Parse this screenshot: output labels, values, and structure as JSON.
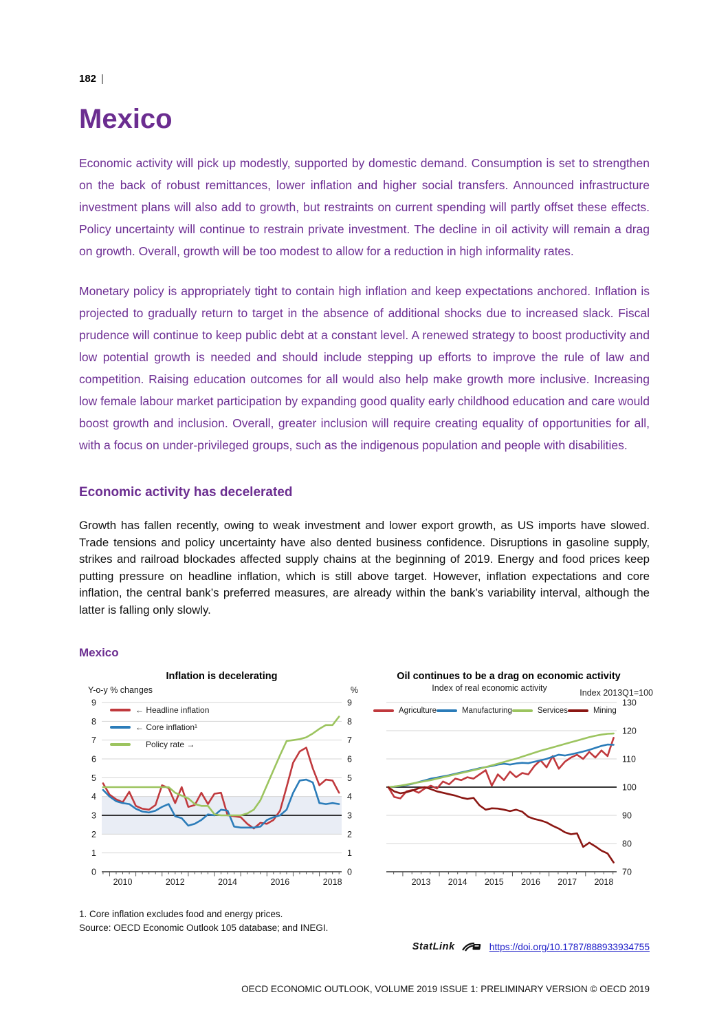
{
  "page": {
    "page_number": "182",
    "page_number_separator": "|",
    "title": "Mexico",
    "lead_paragraphs": [
      "Economic activity will pick up modestly, supported by domestic demand. Consumption is set to strengthen on the back of robust remittances, lower inflation and higher social transfers. Announced infrastructure investment plans will also add to growth, but restraints on current spending will partly offset these effects. Policy uncertainty will continue to restrain private investment. The decline in oil activity will remain a drag on growth. Overall, growth will be too modest to allow for a reduction in high informality rates.",
      "Monetary policy is appropriately tight to contain high inflation and keep expectations anchored. Inflation is projected to gradually return to target in the absence of additional shocks due to increased slack. Fiscal prudence will continue to keep public debt at a constant level. A renewed strategy to boost productivity and low potential growth is needed and should include stepping up efforts to improve the rule of law and competition. Raising education outcomes for all would also help make growth more inclusive. Increasing low female labour market participation by expanding good quality early childhood education and care would boost growth and inclusion. Overall, greater inclusion will require creating equality of opportunities for all, with a focus on under-privileged groups, such as the indigenous population and people with disabilities."
    ],
    "section_heading": "Economic activity has decelerated",
    "body_paragraph": "Growth has fallen recently, owing to weak investment and lower export growth, as US imports have slowed. Trade tensions and policy uncertainty have also dented business confidence. Disruptions in gasoline supply, strikes and railroad blockades affected supply chains at the beginning of 2019. Energy and food prices keep putting pressure on headline inflation, which is still above target. However, inflation expectations and core inflation, the central bank’s preferred measures, are already within the bank’s variability interval, although the latter is falling only slowly.",
    "figure_label": "Mexico",
    "footnotes": [
      "1. Core inflation excludes food and energy prices.",
      "Source: OECD Economic Outlook 105 database; and INEGI."
    ],
    "statlink": {
      "label": "StatLink",
      "icon": "statlink-icon",
      "url": "https://doi.org/10.1787/888933934755"
    },
    "footer": "OECD ECONOMIC OUTLOOK, VOLUME 2019 ISSUE 1: PRELIMINARY VERSION © OECD 2019"
  },
  "colors": {
    "heading_purple": "#6b2d90",
    "lead_purple": "#6d2e93",
    "link_blue": "#1d1dc8",
    "grid_gray": "#d4d4d4",
    "band_fill": "#e9edf5",
    "axis_dark": "#333333"
  },
  "chart_data": [
    {
      "type": "line",
      "title": "Inflation is decelerating",
      "left_axis_label": "Y-o-y % changes",
      "right_axis_label": "%",
      "ylim": [
        0,
        9
      ],
      "yticks": [
        0,
        1,
        2,
        3,
        4,
        5,
        6,
        7,
        8,
        9
      ],
      "y_labels_left": true,
      "y_labels_right": true,
      "xlim": [
        2009.7,
        2018.85
      ],
      "xtick_labels": [
        2010,
        2012,
        2014,
        2016,
        2018
      ],
      "minor_tick_step": 0.25,
      "grid": true,
      "band": {
        "y_from": 2,
        "y_to": 4
      },
      "reference_line_y": 3,
      "x_start": 2009.75,
      "x_step": 0.25,
      "legend_position": "top-left-vertical",
      "series": [
        {
          "name": "Headline inflation",
          "legend_label": "← Headline inflation",
          "color": "#c0393d",
          "values": [
            4.7,
            4.1,
            3.85,
            3.7,
            4.25,
            3.5,
            3.35,
            3.3,
            3.55,
            4.6,
            4.45,
            3.65,
            4.5,
            3.45,
            3.55,
            4.2,
            3.6,
            4.15,
            4.2,
            3.0,
            2.95,
            2.9,
            2.55,
            2.3,
            2.6,
            2.55,
            2.75,
            3.25,
            4.5,
            5.8,
            6.4,
            6.6,
            5.5,
            4.6,
            4.9,
            4.85,
            4.2
          ]
        },
        {
          "name": "Core inflation",
          "legend_label": "← Core inflation¹",
          "color": "#2b7cb9",
          "values": [
            4.35,
            4.0,
            3.75,
            3.65,
            3.6,
            3.35,
            3.2,
            3.15,
            3.25,
            3.45,
            3.6,
            2.95,
            2.85,
            2.45,
            2.55,
            2.75,
            3.05,
            3.0,
            3.3,
            3.25,
            2.4,
            2.35,
            2.35,
            2.35,
            2.4,
            2.75,
            2.9,
            3.0,
            3.3,
            4.2,
            4.85,
            4.9,
            4.75,
            3.65,
            3.6,
            3.65,
            3.6
          ]
        },
        {
          "name": "Policy rate",
          "legend_label": "Policy rate →",
          "color": "#9cc45f",
          "values": [
            4.5,
            4.5,
            4.5,
            4.5,
            4.5,
            4.5,
            4.5,
            4.5,
            4.5,
            4.5,
            4.5,
            4.2,
            4.05,
            3.9,
            3.6,
            3.5,
            3.5,
            3.05,
            3.0,
            3.0,
            3.0,
            3.0,
            3.1,
            3.3,
            3.8,
            4.6,
            5.4,
            6.2,
            6.95,
            7.0,
            7.05,
            7.15,
            7.35,
            7.6,
            7.8,
            7.8,
            8.25
          ]
        }
      ]
    },
    {
      "type": "line",
      "title": "Oil continues to be a drag on economic activity",
      "subtitle": "Index of real economic activity",
      "right_axis_label": "Index 2013Q1=100",
      "ylim": [
        70,
        130
      ],
      "yticks": [
        70,
        80,
        90,
        100,
        110,
        120,
        130
      ],
      "y_labels_left": false,
      "y_labels_right": true,
      "xlim": [
        2012.55,
        2018.85
      ],
      "xtick_labels": [
        2013,
        2014,
        2015,
        2016,
        2017,
        2018
      ],
      "minor_tick_step": 0.25,
      "grid": true,
      "reference_line_y": 100,
      "x_start": 2012.6,
      "x_step": 0.1667,
      "legend_position": "top-horizontal",
      "series": [
        {
          "name": "Agriculture",
          "color": "#c0393d",
          "values": [
            100,
            96.5,
            96.0,
            98.5,
            99.0,
            98.0,
            99.5,
            100.5,
            99.5,
            102.0,
            101.0,
            103.0,
            102.5,
            103.5,
            103.0,
            104.5,
            106.0,
            100.5,
            104.5,
            102.5,
            105.5,
            103.5,
            105.0,
            104.5,
            107.5,
            109.5,
            107.0,
            111.0,
            106.5,
            109.0,
            110.5,
            111.5,
            110.0,
            112.5,
            110.5,
            113.0,
            111.0,
            117.5
          ]
        },
        {
          "name": "Manufacturing",
          "color": "#2b7cb9",
          "values": [
            100,
            100.2,
            100.4,
            100.7,
            101.2,
            101.8,
            102.4,
            103.0,
            103.4,
            103.8,
            104.2,
            104.7,
            105.2,
            105.7,
            106.2,
            106.7,
            107.1,
            107.5,
            108.0,
            108.3,
            108.0,
            108.4,
            108.6,
            108.5,
            109.0,
            109.5,
            110.0,
            110.8,
            111.5,
            111.2,
            111.6,
            112.1,
            112.6,
            113.2,
            113.9,
            114.6,
            115.1,
            115.0
          ]
        },
        {
          "name": "Services",
          "color": "#9cc45f",
          "values": [
            100,
            100.2,
            100.5,
            100.9,
            101.3,
            101.7,
            102.1,
            102.5,
            103.0,
            103.5,
            104.0,
            104.5,
            105.0,
            105.5,
            106.0,
            106.5,
            107.1,
            107.7,
            108.3,
            108.9,
            109.5,
            110.1,
            110.8,
            111.5,
            112.2,
            112.9,
            113.5,
            114.1,
            114.7,
            115.3,
            115.9,
            116.5,
            117.1,
            117.7,
            118.2,
            118.6,
            118.9,
            119.0
          ]
        },
        {
          "name": "Mining",
          "color": "#8b1713",
          "values": [
            100,
            98.5,
            97.8,
            98.2,
            98.8,
            99.6,
            100.0,
            99.3,
            98.5,
            98.0,
            97.5,
            97.0,
            96.3,
            95.8,
            96.2,
            93.5,
            92.0,
            92.5,
            92.4,
            92.0,
            91.5,
            92.0,
            91.3,
            89.5,
            88.7,
            88.2,
            87.5,
            86.3,
            85.3,
            84.0,
            83.3,
            83.6,
            78.8,
            80.3,
            79.0,
            77.5,
            76.5,
            73.3
          ]
        }
      ]
    }
  ]
}
